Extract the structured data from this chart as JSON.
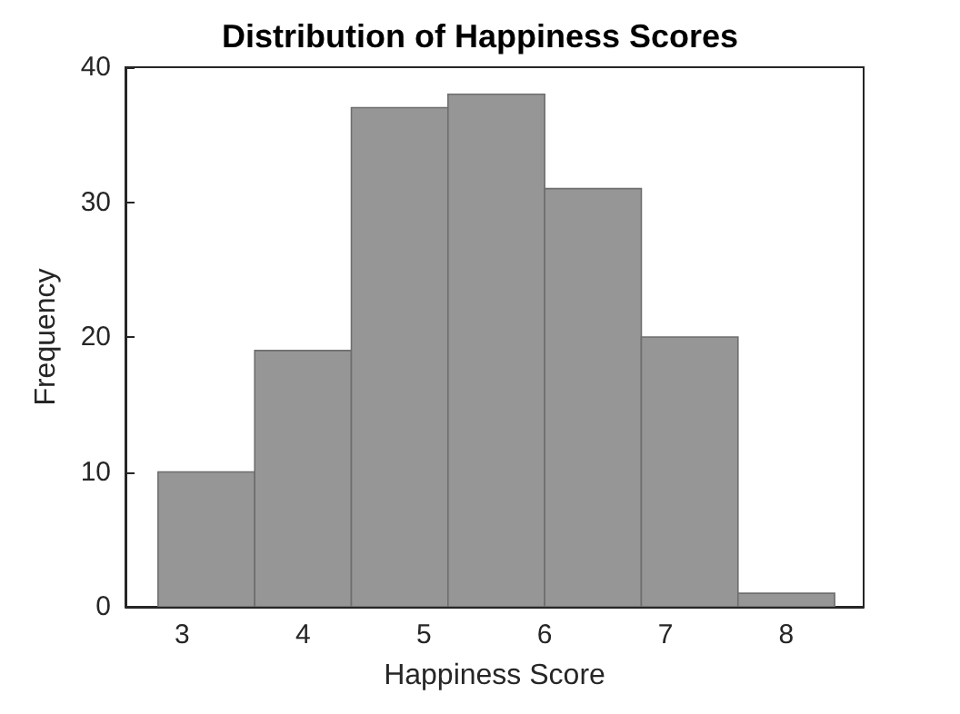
{
  "chart_data": {
    "type": "histogram",
    "title": "Distribution of Happiness Scores",
    "xlabel": "Happiness Score",
    "ylabel": "Frequency",
    "bins": [
      2.8,
      3.6,
      4.4,
      5.2,
      6.0,
      6.8,
      7.6,
      8.4
    ],
    "values": [
      10,
      19,
      37,
      38,
      31,
      20,
      1
    ],
    "color": "#969696",
    "xlim": [
      2.53,
      8.64
    ],
    "xticks": [
      3,
      4,
      5,
      6,
      7,
      8
    ],
    "ylim": [
      0,
      40
    ],
    "yticks": [
      0,
      10,
      20,
      30,
      40
    ],
    "grid": false
  }
}
